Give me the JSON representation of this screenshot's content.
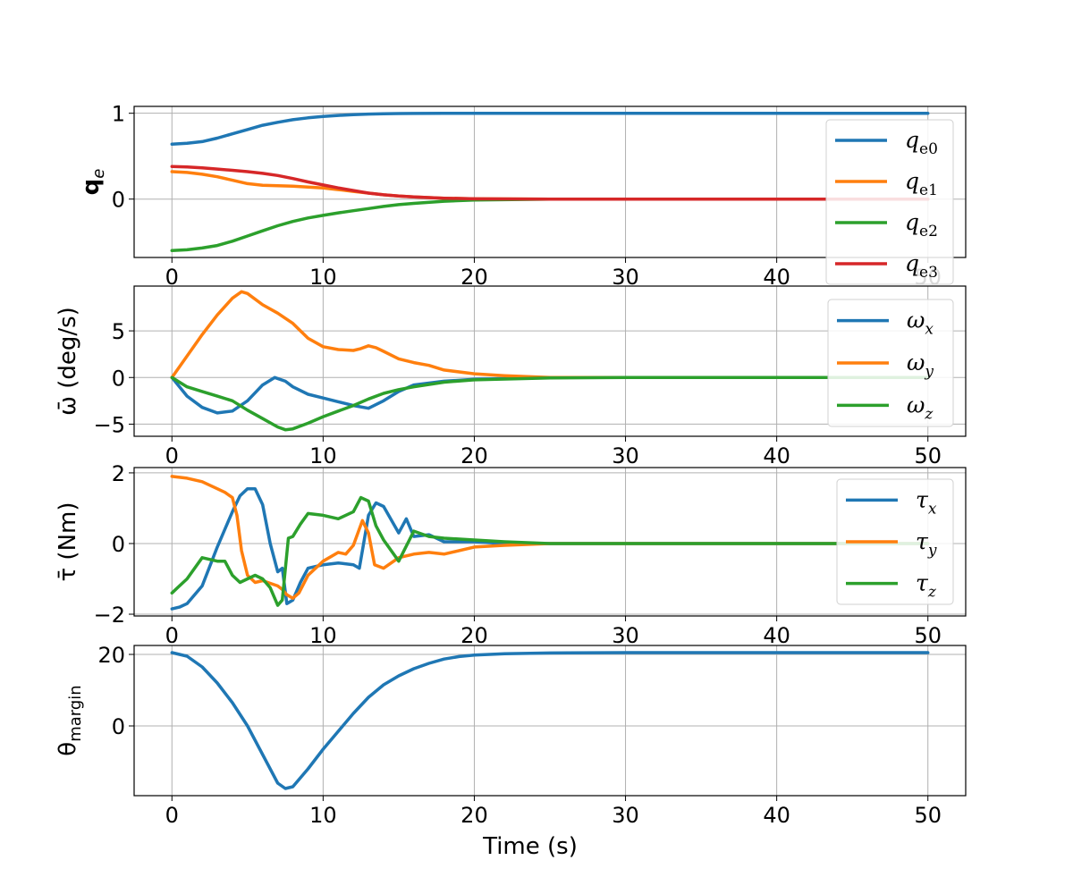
{
  "chart_data": [
    {
      "type": "line",
      "title": "",
      "xlabel": "",
      "ylabel": "q",
      "ylabel_sub": "e",
      "xlim": [
        -2.5,
        52.5
      ],
      "ylim": [
        -0.68,
        1.08
      ],
      "xticks": [
        0,
        10,
        20,
        30,
        40,
        50
      ],
      "yticks": [
        0,
        1
      ],
      "legend": "right",
      "series": [
        {
          "name": "q",
          "sub": "e0",
          "color": "#1f77b4",
          "x": [
            0,
            1,
            2,
            3,
            4,
            5,
            6,
            7,
            8,
            9,
            10,
            11,
            12,
            13,
            14,
            15,
            16,
            18,
            20,
            25,
            30,
            40,
            50
          ],
          "y": [
            0.64,
            0.65,
            0.67,
            0.71,
            0.76,
            0.81,
            0.86,
            0.895,
            0.925,
            0.947,
            0.963,
            0.975,
            0.984,
            0.99,
            0.994,
            0.997,
            0.998,
            0.999,
            1.0,
            1.0,
            1.0,
            1.0,
            1.0
          ]
        },
        {
          "name": "q",
          "sub": "e1",
          "color": "#ff7f0e",
          "x": [
            0,
            1,
            2,
            3,
            4,
            5,
            6,
            7,
            8,
            9,
            10,
            11,
            12,
            13,
            14,
            15,
            16,
            18,
            20,
            25,
            30,
            40,
            50
          ],
          "y": [
            0.32,
            0.31,
            0.29,
            0.26,
            0.22,
            0.18,
            0.16,
            0.155,
            0.15,
            0.14,
            0.13,
            0.11,
            0.09,
            0.07,
            0.05,
            0.035,
            0.025,
            0.01,
            0.003,
            0.0,
            0.0,
            0.0,
            0.0
          ]
        },
        {
          "name": "q",
          "sub": "e2",
          "color": "#2ca02c",
          "x": [
            0,
            1,
            2,
            3,
            4,
            5,
            6,
            7,
            8,
            9,
            10,
            11,
            12,
            13,
            14,
            15,
            16,
            18,
            20,
            25,
            30,
            40,
            50
          ],
          "y": [
            -0.6,
            -0.59,
            -0.57,
            -0.54,
            -0.49,
            -0.43,
            -0.37,
            -0.31,
            -0.26,
            -0.22,
            -0.19,
            -0.16,
            -0.135,
            -0.11,
            -0.085,
            -0.065,
            -0.05,
            -0.025,
            -0.01,
            0.0,
            0.0,
            0.0,
            0.0
          ]
        },
        {
          "name": "q",
          "sub": "e3",
          "color": "#d62728",
          "x": [
            0,
            1,
            2,
            3,
            4,
            5,
            6,
            7,
            8,
            9,
            10,
            11,
            12,
            13,
            14,
            15,
            16,
            18,
            20,
            25,
            30,
            40,
            50
          ],
          "y": [
            0.38,
            0.375,
            0.365,
            0.35,
            0.335,
            0.32,
            0.3,
            0.275,
            0.24,
            0.2,
            0.165,
            0.13,
            0.1,
            0.07,
            0.05,
            0.035,
            0.025,
            0.01,
            0.003,
            0.0,
            0.0,
            0.0,
            0.0
          ]
        }
      ]
    },
    {
      "type": "line",
      "title": "",
      "xlabel": "",
      "ylabel": "ω̄ (deg/s)",
      "xlim": [
        -2.5,
        52.5
      ],
      "ylim": [
        -6.3,
        9.8
      ],
      "xticks": [
        0,
        10,
        20,
        30,
        40,
        50
      ],
      "yticks": [
        -5,
        0,
        5
      ],
      "legend": "right",
      "series": [
        {
          "name": "ω",
          "sub": "x",
          "color": "#1f77b4",
          "x": [
            0,
            1,
            2,
            3,
            4,
            5,
            6,
            6.8,
            7.5,
            8,
            9,
            10,
            11,
            12,
            13,
            14,
            15,
            16,
            18,
            20,
            25,
            30,
            40,
            50
          ],
          "y": [
            0,
            -2,
            -3.2,
            -3.8,
            -3.6,
            -2.5,
            -0.8,
            0,
            -0.4,
            -1,
            -1.8,
            -2.2,
            -2.6,
            -3.0,
            -3.3,
            -2.5,
            -1.5,
            -0.8,
            -0.4,
            -0.2,
            0,
            0,
            0,
            0
          ]
        },
        {
          "name": "ω",
          "sub": "y",
          "color": "#ff7f0e",
          "x": [
            0,
            1,
            2,
            3,
            4,
            4.6,
            5,
            6,
            7,
            8,
            9,
            10,
            11,
            12,
            12.5,
            13,
            13.5,
            14,
            15,
            16,
            17,
            18,
            20,
            22,
            25,
            30,
            40,
            50
          ],
          "y": [
            0,
            2.3,
            4.6,
            6.7,
            8.5,
            9.2,
            9.0,
            7.8,
            6.9,
            5.8,
            4.2,
            3.3,
            3.0,
            2.9,
            3.1,
            3.4,
            3.2,
            2.8,
            2.0,
            1.6,
            1.3,
            0.8,
            0.4,
            0.2,
            0,
            0,
            0,
            0
          ]
        },
        {
          "name": "ω",
          "sub": "z",
          "color": "#2ca02c",
          "x": [
            0,
            1,
            2,
            3,
            4,
            5,
            6,
            7,
            7.5,
            8,
            9,
            10,
            11,
            12,
            13,
            14,
            15,
            16,
            18,
            20,
            25,
            30,
            40,
            50
          ],
          "y": [
            0,
            -1,
            -1.5,
            -2,
            -2.5,
            -3.5,
            -4.4,
            -5.3,
            -5.6,
            -5.5,
            -4.9,
            -4.2,
            -3.6,
            -3.0,
            -2.3,
            -1.7,
            -1.3,
            -1.0,
            -0.5,
            -0.25,
            -0.05,
            0,
            0,
            0
          ]
        }
      ]
    },
    {
      "type": "line",
      "title": "",
      "xlabel": "",
      "ylabel": "τ̄ (Nm)",
      "xlim": [
        -2.5,
        52.5
      ],
      "ylim": [
        -2.05,
        2.15
      ],
      "xticks": [
        0,
        10,
        20,
        30,
        40,
        50
      ],
      "yticks": [
        -2,
        0,
        2
      ],
      "legend": "right",
      "series": [
        {
          "name": "τ",
          "sub": "x",
          "color": "#1f77b4",
          "x": [
            0,
            0.5,
            1,
            2,
            3,
            4,
            4.5,
            5,
            5.5,
            6,
            6.5,
            7,
            7.3,
            7.6,
            8,
            8.5,
            9,
            10,
            11,
            12,
            12.4,
            13,
            13.5,
            14,
            15,
            15.5,
            16,
            17,
            18,
            20,
            22,
            25,
            30,
            40,
            50
          ],
          "y": [
            -1.85,
            -1.8,
            -1.7,
            -1.2,
            -0.1,
            0.9,
            1.35,
            1.55,
            1.55,
            1.1,
            0.0,
            -0.8,
            -0.7,
            -1.7,
            -1.6,
            -1.1,
            -0.7,
            -0.6,
            -0.55,
            -0.6,
            -0.7,
            0.8,
            1.15,
            1.05,
            0.3,
            0.7,
            0.2,
            0.25,
            0.05,
            0.05,
            0.0,
            0,
            0,
            0,
            0
          ]
        },
        {
          "name": "τ",
          "sub": "y",
          "color": "#ff7f0e",
          "x": [
            0,
            1,
            2,
            3,
            3.5,
            4,
            4.3,
            4.6,
            5,
            5.5,
            6,
            7,
            7.3,
            7.6,
            8,
            8.4,
            9,
            10,
            11,
            11.5,
            12,
            12.6,
            13,
            13.4,
            14,
            15,
            16,
            17,
            18,
            20,
            22,
            25,
            30,
            40,
            50
          ],
          "y": [
            1.9,
            1.85,
            1.75,
            1.55,
            1.45,
            1.3,
            0.8,
            -0.2,
            -0.9,
            -1.1,
            -1.05,
            -1.2,
            -1.3,
            -1.45,
            -1.55,
            -1.4,
            -0.9,
            -0.5,
            -0.25,
            -0.3,
            -0.05,
            0.65,
            0.3,
            -0.6,
            -0.7,
            -0.4,
            -0.3,
            -0.25,
            -0.3,
            -0.1,
            -0.05,
            0.0,
            0,
            0,
            0
          ]
        },
        {
          "name": "τ",
          "sub": "z",
          "color": "#2ca02c",
          "x": [
            0,
            0.5,
            1,
            2,
            3,
            3.5,
            4,
            4.5,
            5,
            5.5,
            6,
            6.5,
            7,
            7.3,
            7.7,
            8,
            8.5,
            9,
            10,
            11,
            12,
            12.5,
            13,
            13.5,
            14,
            15,
            16,
            17,
            18,
            20,
            22,
            25,
            30,
            40,
            50
          ],
          "y": [
            -1.4,
            -1.2,
            -1.0,
            -0.4,
            -0.5,
            -0.5,
            -0.9,
            -1.1,
            -1.0,
            -0.9,
            -1.0,
            -1.25,
            -1.75,
            -1.6,
            0.15,
            0.2,
            0.55,
            0.85,
            0.8,
            0.7,
            0.9,
            1.3,
            1.2,
            0.5,
            0.1,
            -0.5,
            0.35,
            0.2,
            0.15,
            0.1,
            0.05,
            0.0,
            0,
            0,
            0
          ]
        }
      ]
    },
    {
      "type": "line",
      "title": "",
      "xlabel": "Time (s)",
      "ylabel": "θ",
      "ylabel_sub": "margin",
      "xlim": [
        -2.5,
        52.5
      ],
      "ylim": [
        -19.5,
        22.5
      ],
      "xticks": [
        0,
        10,
        20,
        30,
        40,
        50
      ],
      "yticks": [
        0,
        20
      ],
      "legend": "none",
      "series": [
        {
          "name": "θ margin",
          "sub": "",
          "color": "#1f77b4",
          "x": [
            0,
            1,
            2,
            3,
            4,
            5,
            6,
            7,
            7.5,
            8,
            9,
            10,
            11,
            12,
            13,
            14,
            15,
            16,
            17,
            18,
            19,
            20,
            22,
            25,
            30,
            40,
            50
          ],
          "y": [
            20.5,
            19.5,
            16.5,
            12,
            6.5,
            0,
            -8,
            -16,
            -17.5,
            -17,
            -12,
            -6.5,
            -1.5,
            3.5,
            8,
            11.5,
            14,
            16,
            17.5,
            18.7,
            19.4,
            19.8,
            20.2,
            20.4,
            20.5,
            20.5,
            20.5
          ]
        }
      ]
    }
  ]
}
